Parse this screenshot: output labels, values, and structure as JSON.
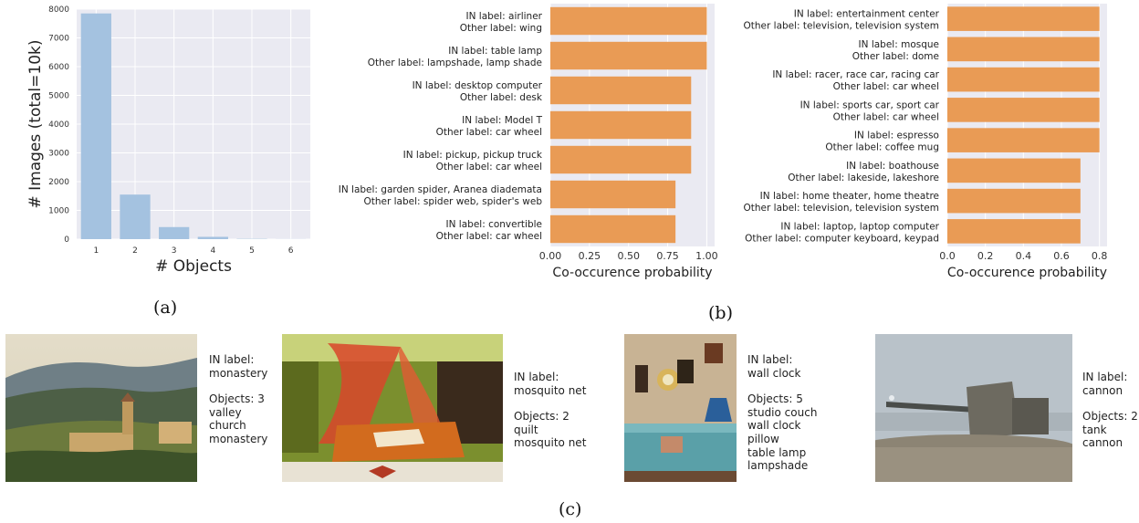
{
  "chart_data": [
    {
      "type": "bar",
      "categories": [
        "1",
        "2",
        "3",
        "4",
        "5",
        "6"
      ],
      "values": [
        7850,
        1550,
        420,
        80,
        10,
        3
      ],
      "xlabel": "# Objects",
      "ylabel": "# Images (total=10k)",
      "ylim": [
        0,
        8000
      ],
      "yticks": [
        "0",
        "1000",
        "2000",
        "3000",
        "4000",
        "5000",
        "6000",
        "7000",
        "8000"
      ],
      "grid": true,
      "colors": {
        "bar": "#a4c2e0",
        "background": "#eaeaf2"
      }
    },
    {
      "type": "bar",
      "orientation": "horizontal",
      "categories": [
        [
          "IN label: airliner",
          "Other label: wing"
        ],
        [
          "IN label: table lamp",
          "Other label: lampshade, lamp shade"
        ],
        [
          "IN label: desktop computer",
          "Other label: desk"
        ],
        [
          "IN label: Model T",
          "Other label: car wheel"
        ],
        [
          "IN label: pickup, pickup truck",
          "Other label: car wheel"
        ],
        [
          "IN label: garden spider, Aranea diademata",
          "Other label: spider web, spider's web"
        ],
        [
          "IN label: convertible",
          "Other label: car wheel"
        ]
      ],
      "values": [
        1.0,
        1.0,
        0.9,
        0.9,
        0.9,
        0.8,
        0.8
      ],
      "xlabel": "Co-occurence probability",
      "xlim": [
        0,
        1.05
      ],
      "xticks": [
        "0.00",
        "0.25",
        "0.50",
        "0.75",
        "1.00"
      ],
      "grid": true,
      "colors": {
        "bar": "#e99b55",
        "background": "#eaeaf2"
      }
    },
    {
      "type": "bar",
      "orientation": "horizontal",
      "categories": [
        [
          "IN label: entertainment center",
          "Other label: television, television system"
        ],
        [
          "IN label: mosque",
          "Other label: dome"
        ],
        [
          "IN label: racer, race car, racing car",
          "Other label: car wheel"
        ],
        [
          "IN label: sports car, sport car",
          "Other label: car wheel"
        ],
        [
          "IN label: espresso",
          "Other label: coffee mug"
        ],
        [
          "IN label: boathouse",
          "Other label: lakeside, lakeshore"
        ],
        [
          "IN label: home theater, home theatre",
          "Other label: television, television system"
        ],
        [
          "IN label: laptop, laptop computer",
          "Other label: computer keyboard, keypad"
        ]
      ],
      "values": [
        0.8,
        0.8,
        0.8,
        0.8,
        0.8,
        0.7,
        0.7,
        0.7
      ],
      "xlabel": "Co-occurence probability",
      "xlim": [
        0,
        0.84
      ],
      "xticks": [
        "0.0",
        "0.2",
        "0.4",
        "0.6",
        "0.8"
      ],
      "grid": true,
      "colors": {
        "bar": "#e99b55",
        "background": "#eaeaf2"
      }
    }
  ],
  "panel_labels": {
    "a": "(a)",
    "b": "(b)",
    "c": "(c)"
  },
  "examples": [
    {
      "in_label": "IN label:",
      "in_value": "monastery",
      "objects": "Objects: 3",
      "items": [
        "valley",
        "church",
        "monastery"
      ],
      "scene": "hillside-monastery"
    },
    {
      "in_label": "IN label:",
      "in_value": "mosquito net",
      "objects": "Objects: 2",
      "items": [
        "quilt",
        "mosquito net"
      ],
      "scene": "bedroom-canopy"
    },
    {
      "in_label": "IN label:",
      "in_value": "wall clock",
      "objects": "Objects: 5",
      "items": [
        "studio couch",
        "wall clock",
        "pillow",
        "table lamp",
        "lampshade"
      ],
      "scene": "living-room"
    },
    {
      "in_label": "IN label:",
      "in_value": "cannon",
      "objects": "Objects: 2",
      "items": [
        "tank",
        "cannon"
      ],
      "scene": "coastal-cannon"
    }
  ]
}
